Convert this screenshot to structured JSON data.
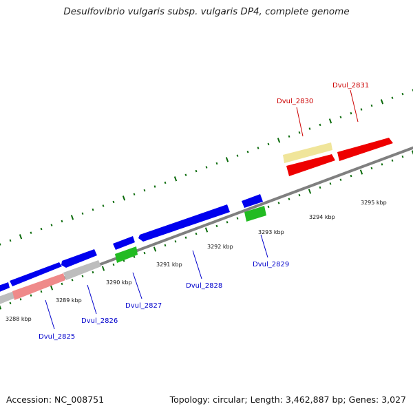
{
  "title": "Desulfovibrio vulgaris subsp. vulgaris DP4, complete genome",
  "footer": {
    "accession": "Accession: NC_008751",
    "summary": "Topology: circular; Length: 3,462,887 bp; Genes: 3,027"
  },
  "colors": {
    "backbone": "#808080",
    "tick": "#0a6a0a",
    "blue": "#0000ee",
    "green": "#22bb22",
    "grey": "#bdbdbd",
    "pink": "#ef8a8a",
    "yellow": "#f0e59a",
    "red": "#ee0000",
    "label_blue": "#0000cc",
    "label_red": "#cc0000"
  },
  "kbp_labels": [
    "3288 kbp",
    "3289 kbp",
    "3290 kbp",
    "3291 kbp",
    "3292 kbp",
    "3293 kbp",
    "3294 kbp",
    "3295 kbp"
  ],
  "genes": [
    {
      "name": "Dvul_2825",
      "color": "label_blue"
    },
    {
      "name": "Dvul_2826",
      "color": "label_blue"
    },
    {
      "name": "Dvul_2827",
      "color": "label_blue"
    },
    {
      "name": "Dvul_2828",
      "color": "label_blue"
    },
    {
      "name": "Dvul_2829",
      "color": "label_blue"
    },
    {
      "name": "Dvul_2830",
      "color": "label_red"
    },
    {
      "name": "Dvul_2831",
      "color": "label_red"
    }
  ]
}
